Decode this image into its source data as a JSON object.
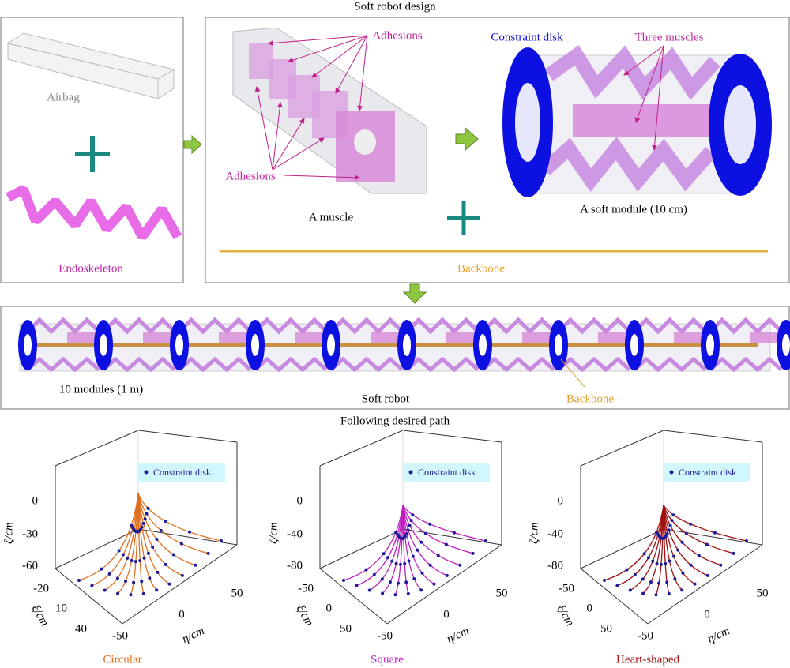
{
  "top_panel": {
    "title": "Soft robot design"
  },
  "left_box": {
    "airbag": "Airbag",
    "endoskeleton": "Endoskeleton"
  },
  "design_box": {
    "adhesions_top": "Adhesions",
    "adhesions_bottom": "Adhesions",
    "muscle": "A muscle",
    "constraint_disk": "Constraint disk",
    "three_muscles": "Three muscles",
    "module": "A soft module (10 cm)",
    "backbone": "Backbone"
  },
  "robot_box": {
    "modules": "10 modules (1 m)",
    "robot": "Soft robot",
    "backbone": "Backbone"
  },
  "paths": {
    "title": "Following desired path",
    "plots": [
      {
        "name": "Circular",
        "legend": "Constraint disk",
        "zlabel": "ζ/cm",
        "xlabel": "ξ/cm",
        "ylabel": "η/cm",
        "zticks": [
          0,
          -30,
          -60
        ],
        "xticks": [
          -20,
          10,
          40
        ],
        "yticks": [
          -50,
          0,
          50
        ]
      },
      {
        "name": "Square",
        "legend": "Constraint disk",
        "zlabel": "ζ/cm",
        "xlabel": "ξ/cm",
        "ylabel": "η/cm",
        "zticks": [
          0,
          -40,
          -80
        ],
        "xticks": [
          -50,
          0,
          50
        ],
        "yticks": [
          -50,
          0,
          50
        ]
      },
      {
        "name": "Heart-shaped",
        "legend": "Constraint disk",
        "zlabel": "ζ/cm",
        "xlabel": "ξ/cm",
        "ylabel": "η/cm",
        "zticks": [
          0,
          -40,
          -80
        ],
        "xticks": [
          -50,
          0,
          50
        ],
        "yticks": [
          -50,
          0,
          50
        ]
      }
    ]
  }
}
